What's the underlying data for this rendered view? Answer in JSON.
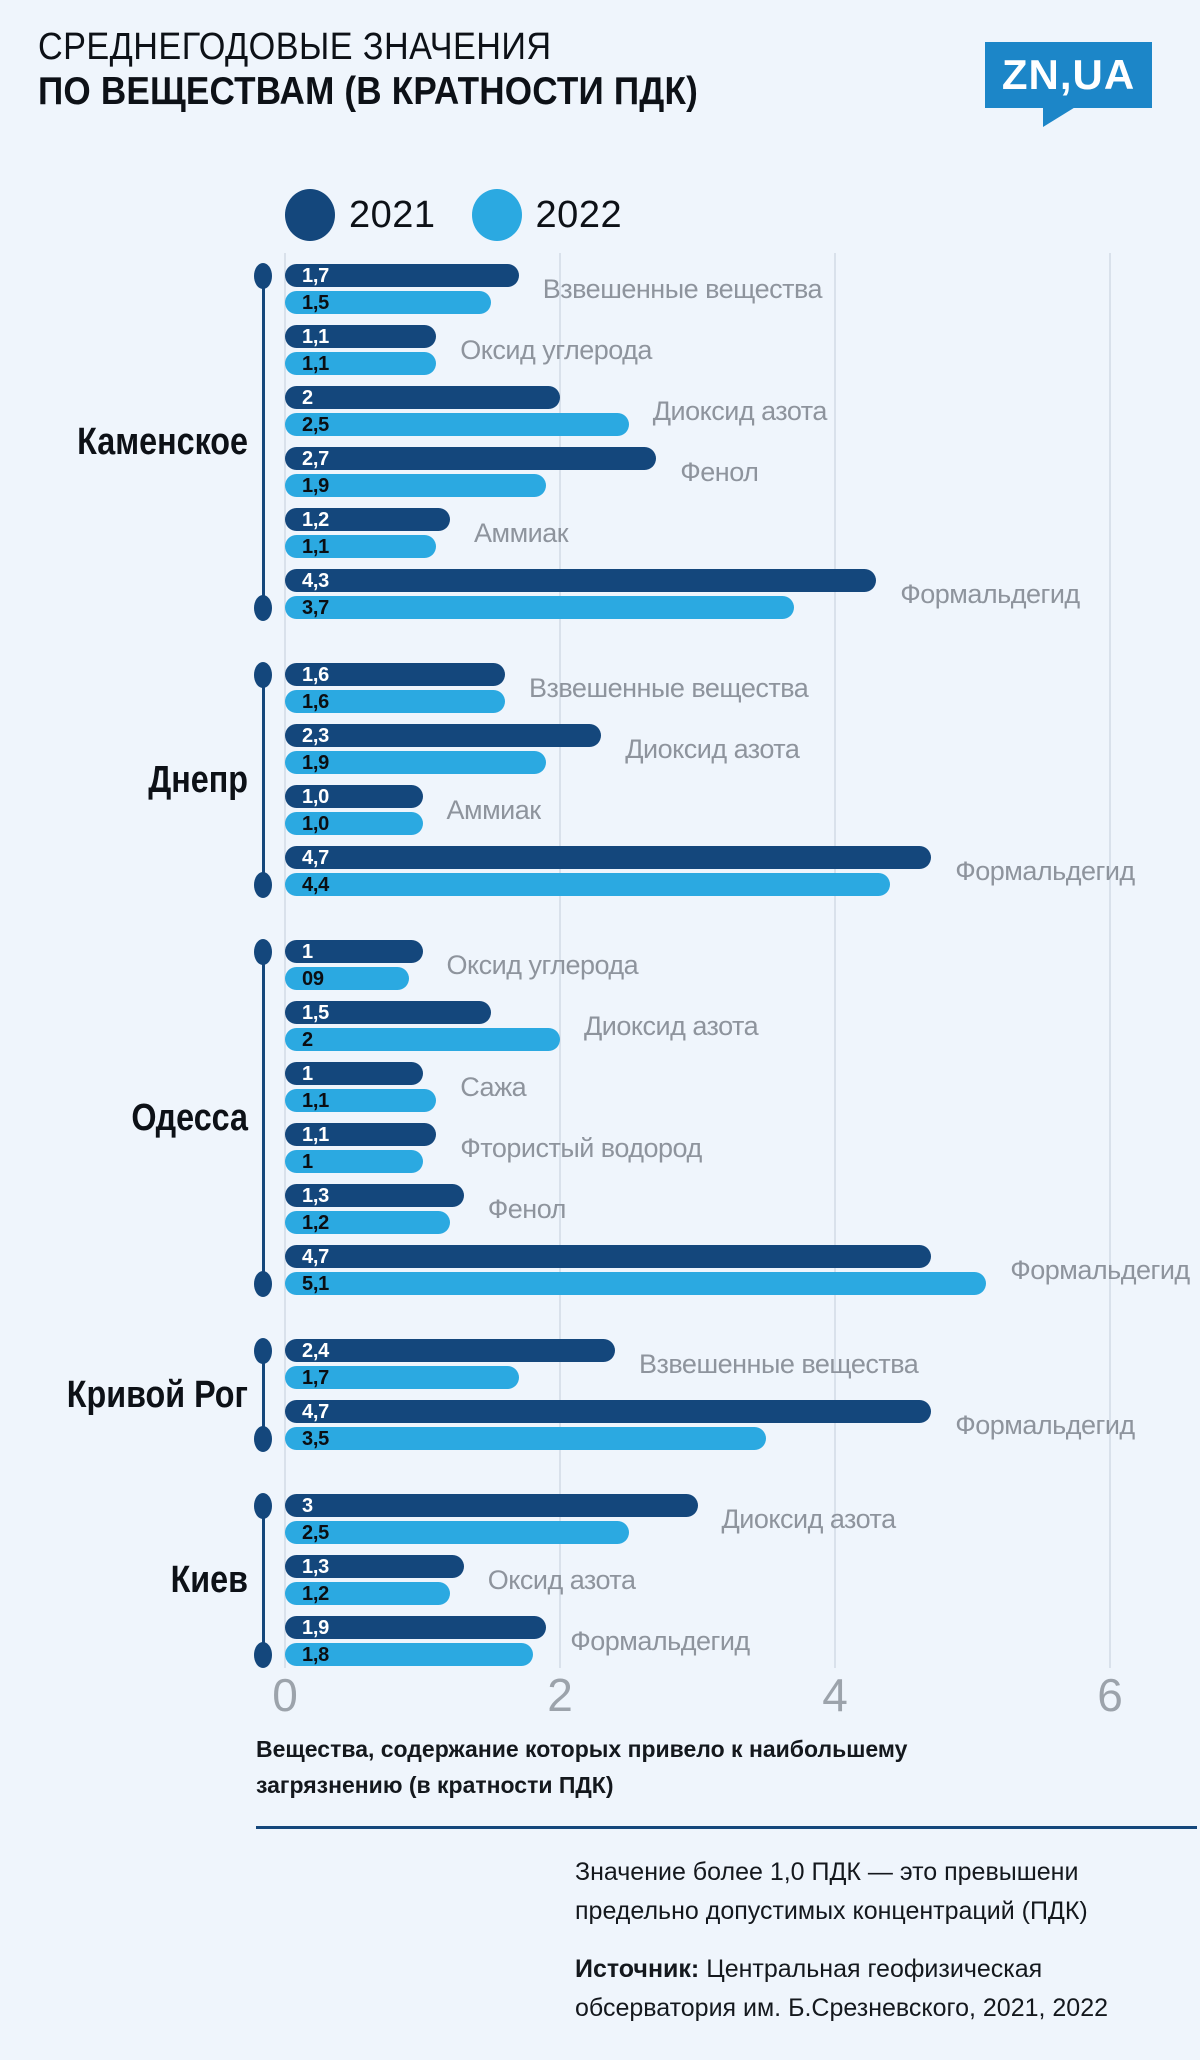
{
  "header": {
    "title_line1": "СРЕДНЕГОДОВЫЕ ЗНАЧЕНИЯ",
    "title_line2": "ПО ВЕЩЕСТВАМ (В КРАТНОСТИ ПДК)",
    "logo_text": "ZN,UA"
  },
  "legend": {
    "items": [
      {
        "label": "2021",
        "color": "#14477C"
      },
      {
        "label": "2022",
        "color": "#2BA9E1"
      }
    ]
  },
  "colors": {
    "bar_2021": "#14477C",
    "bar_2022": "#2BA9E1",
    "background": "#EFF5FC",
    "gridline": "#D9E1EB",
    "substance_label": "#8E949D",
    "axis_tick": "#9CA3AB",
    "logo_blue": "#1C86C8",
    "divider": "#14477C"
  },
  "chart_data": {
    "type": "bar",
    "orientation": "horizontal",
    "title": "Среднегодовые значения по веществам (в кратности ПДК)",
    "series_names": [
      "2021",
      "2022"
    ],
    "x_ticks": [
      {
        "value": 0,
        "label": "0"
      },
      {
        "value": 2,
        "label": "2"
      },
      {
        "value": 4,
        "label": "4"
      },
      {
        "value": 6,
        "label": "6"
      }
    ],
    "xlim": [
      0,
      6.65
    ],
    "grid": true,
    "groups": [
      {
        "city": "Каменское",
        "items": [
          {
            "substance": "Взвешенные вещества",
            "y2021": 1.7,
            "y2022": 1.5,
            "label_2021": "1,7",
            "label_2022": "1,5"
          },
          {
            "substance": "Оксид углерода",
            "y2021": 1.1,
            "y2022": 1.1,
            "label_2021": "1,1",
            "label_2022": "1,1"
          },
          {
            "substance": "Диоксид азота",
            "y2021": 2.0,
            "y2022": 2.5,
            "label_2021": "2",
            "label_2022": "2,5"
          },
          {
            "substance": "Фенол",
            "y2021": 2.7,
            "y2022": 1.9,
            "label_2021": "2,7",
            "label_2022": "1,9"
          },
          {
            "substance": "Аммиак",
            "y2021": 1.2,
            "y2022": 1.1,
            "label_2021": "1,2",
            "label_2022": "1,1"
          },
          {
            "substance": "Формальдегид",
            "y2021": 4.3,
            "y2022": 3.7,
            "label_2021": "4,3",
            "label_2022": "3,7"
          }
        ]
      },
      {
        "city": "Днепр",
        "items": [
          {
            "substance": "Взвешенные вещества",
            "y2021": 1.6,
            "y2022": 1.6,
            "label_2021": "1,6",
            "label_2022": "1,6"
          },
          {
            "substance": "Диоксид азота",
            "y2021": 2.3,
            "y2022": 1.9,
            "label_2021": "2,3",
            "label_2022": "1,9"
          },
          {
            "substance": "Аммиак",
            "y2021": 1.0,
            "y2022": 1.0,
            "label_2021": "1,0",
            "label_2022": "1,0"
          },
          {
            "substance": "Формальдегид",
            "y2021": 4.7,
            "y2022": 4.4,
            "label_2021": "4,7",
            "label_2022": "4,4"
          }
        ]
      },
      {
        "city": "Одесса",
        "items": [
          {
            "substance": "Оксид углерода",
            "y2021": 1.0,
            "y2022": 0.9,
            "label_2021": "1",
            "label_2022": "09"
          },
          {
            "substance": "Диоксид азота",
            "y2021": 1.5,
            "y2022": 2.0,
            "label_2021": "1,5",
            "label_2022": "2"
          },
          {
            "substance": "Сажа",
            "y2021": 1.0,
            "y2022": 1.1,
            "label_2021": "1",
            "label_2022": "1,1"
          },
          {
            "substance": "Фтористый водород",
            "y2021": 1.1,
            "y2022": 1.0,
            "label_2021": "1,1",
            "label_2022": "1"
          },
          {
            "substance": "Фенол",
            "y2021": 1.3,
            "y2022": 1.2,
            "label_2021": "1,3",
            "label_2022": "1,2"
          },
          {
            "substance": "Формальдегид",
            "y2021": 4.7,
            "y2022": 5.1,
            "label_2021": "4,7",
            "label_2022": "5,1"
          }
        ]
      },
      {
        "city": "Кривой Рог",
        "items": [
          {
            "substance": "Взвешенные вещества",
            "y2021": 2.4,
            "y2022": 1.7,
            "label_2021": "2,4",
            "label_2022": "1,7"
          },
          {
            "substance": "Формальдегид",
            "y2021": 4.7,
            "y2022": 3.5,
            "label_2021": "4,7",
            "label_2022": "3,5"
          }
        ]
      },
      {
        "city": "Киев",
        "items": [
          {
            "substance": "Диоксид азота",
            "y2021": 3.0,
            "y2022": 2.5,
            "label_2021": "3",
            "label_2022": "2,5"
          },
          {
            "substance": "Оксид азота",
            "y2021": 1.3,
            "y2022": 1.2,
            "label_2021": "1,3",
            "label_2022": "1,2"
          },
          {
            "substance": "Формальдегид",
            "y2021": 1.9,
            "y2022": 1.8,
            "label_2021": "1,9",
            "label_2022": "1,8"
          }
        ]
      }
    ]
  },
  "footer": {
    "caption": "Вещества, содержание которых привело к наибольшему\nзагрязнению (в кратности ПДК)",
    "note": "Значение более 1,0 ПДК — это превышени\nпредельно допустимых концентраций (ПДК)",
    "source_label": "Источник:",
    "source_text": "Центральная геофизическая\nобсерватория им. Б.Срезневского, 2021, 2022"
  }
}
